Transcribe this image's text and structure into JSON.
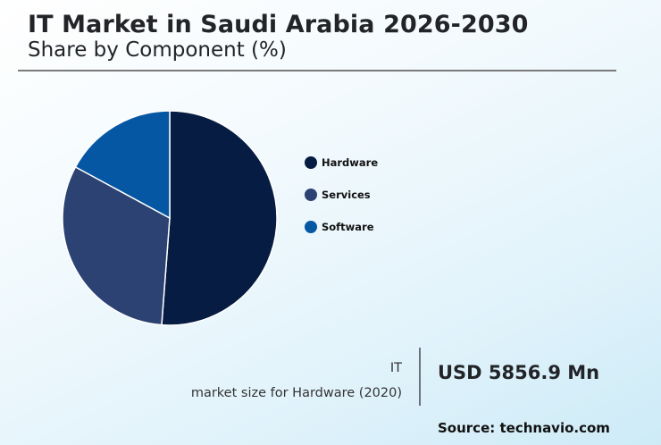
{
  "header": {
    "title": "IT Market in Saudi Arabia 2026-2030",
    "subtitle": "Share by Component (%)"
  },
  "legend": [
    {
      "label": "Hardware",
      "color": "#061c42"
    },
    {
      "label": "Services",
      "color": "#2b4272"
    },
    {
      "label": "Software",
      "color": "#0557a4"
    }
  ],
  "stat": {
    "label_line1": "IT",
    "label_line2": "market size for Hardware (2020)",
    "value": "USD 5856.9 Mn"
  },
  "footer": {
    "source": "Source: technavio.com"
  },
  "chart_data": {
    "type": "pie",
    "title": "IT Market in Saudi Arabia 2026-2030",
    "subtitle": "Share by Component (%)",
    "categories": [
      "Hardware",
      "Services",
      "Software"
    ],
    "values": [
      51.2,
      31.7,
      17.1
    ],
    "colors": [
      "#061c42",
      "#2b4272",
      "#0557a4"
    ],
    "start_angle": "12 o'clock, clockwise",
    "legend_position": "right",
    "annotation": "IT market size for Hardware (2020): USD 5856.9 Mn",
    "source": "technavio.com"
  }
}
